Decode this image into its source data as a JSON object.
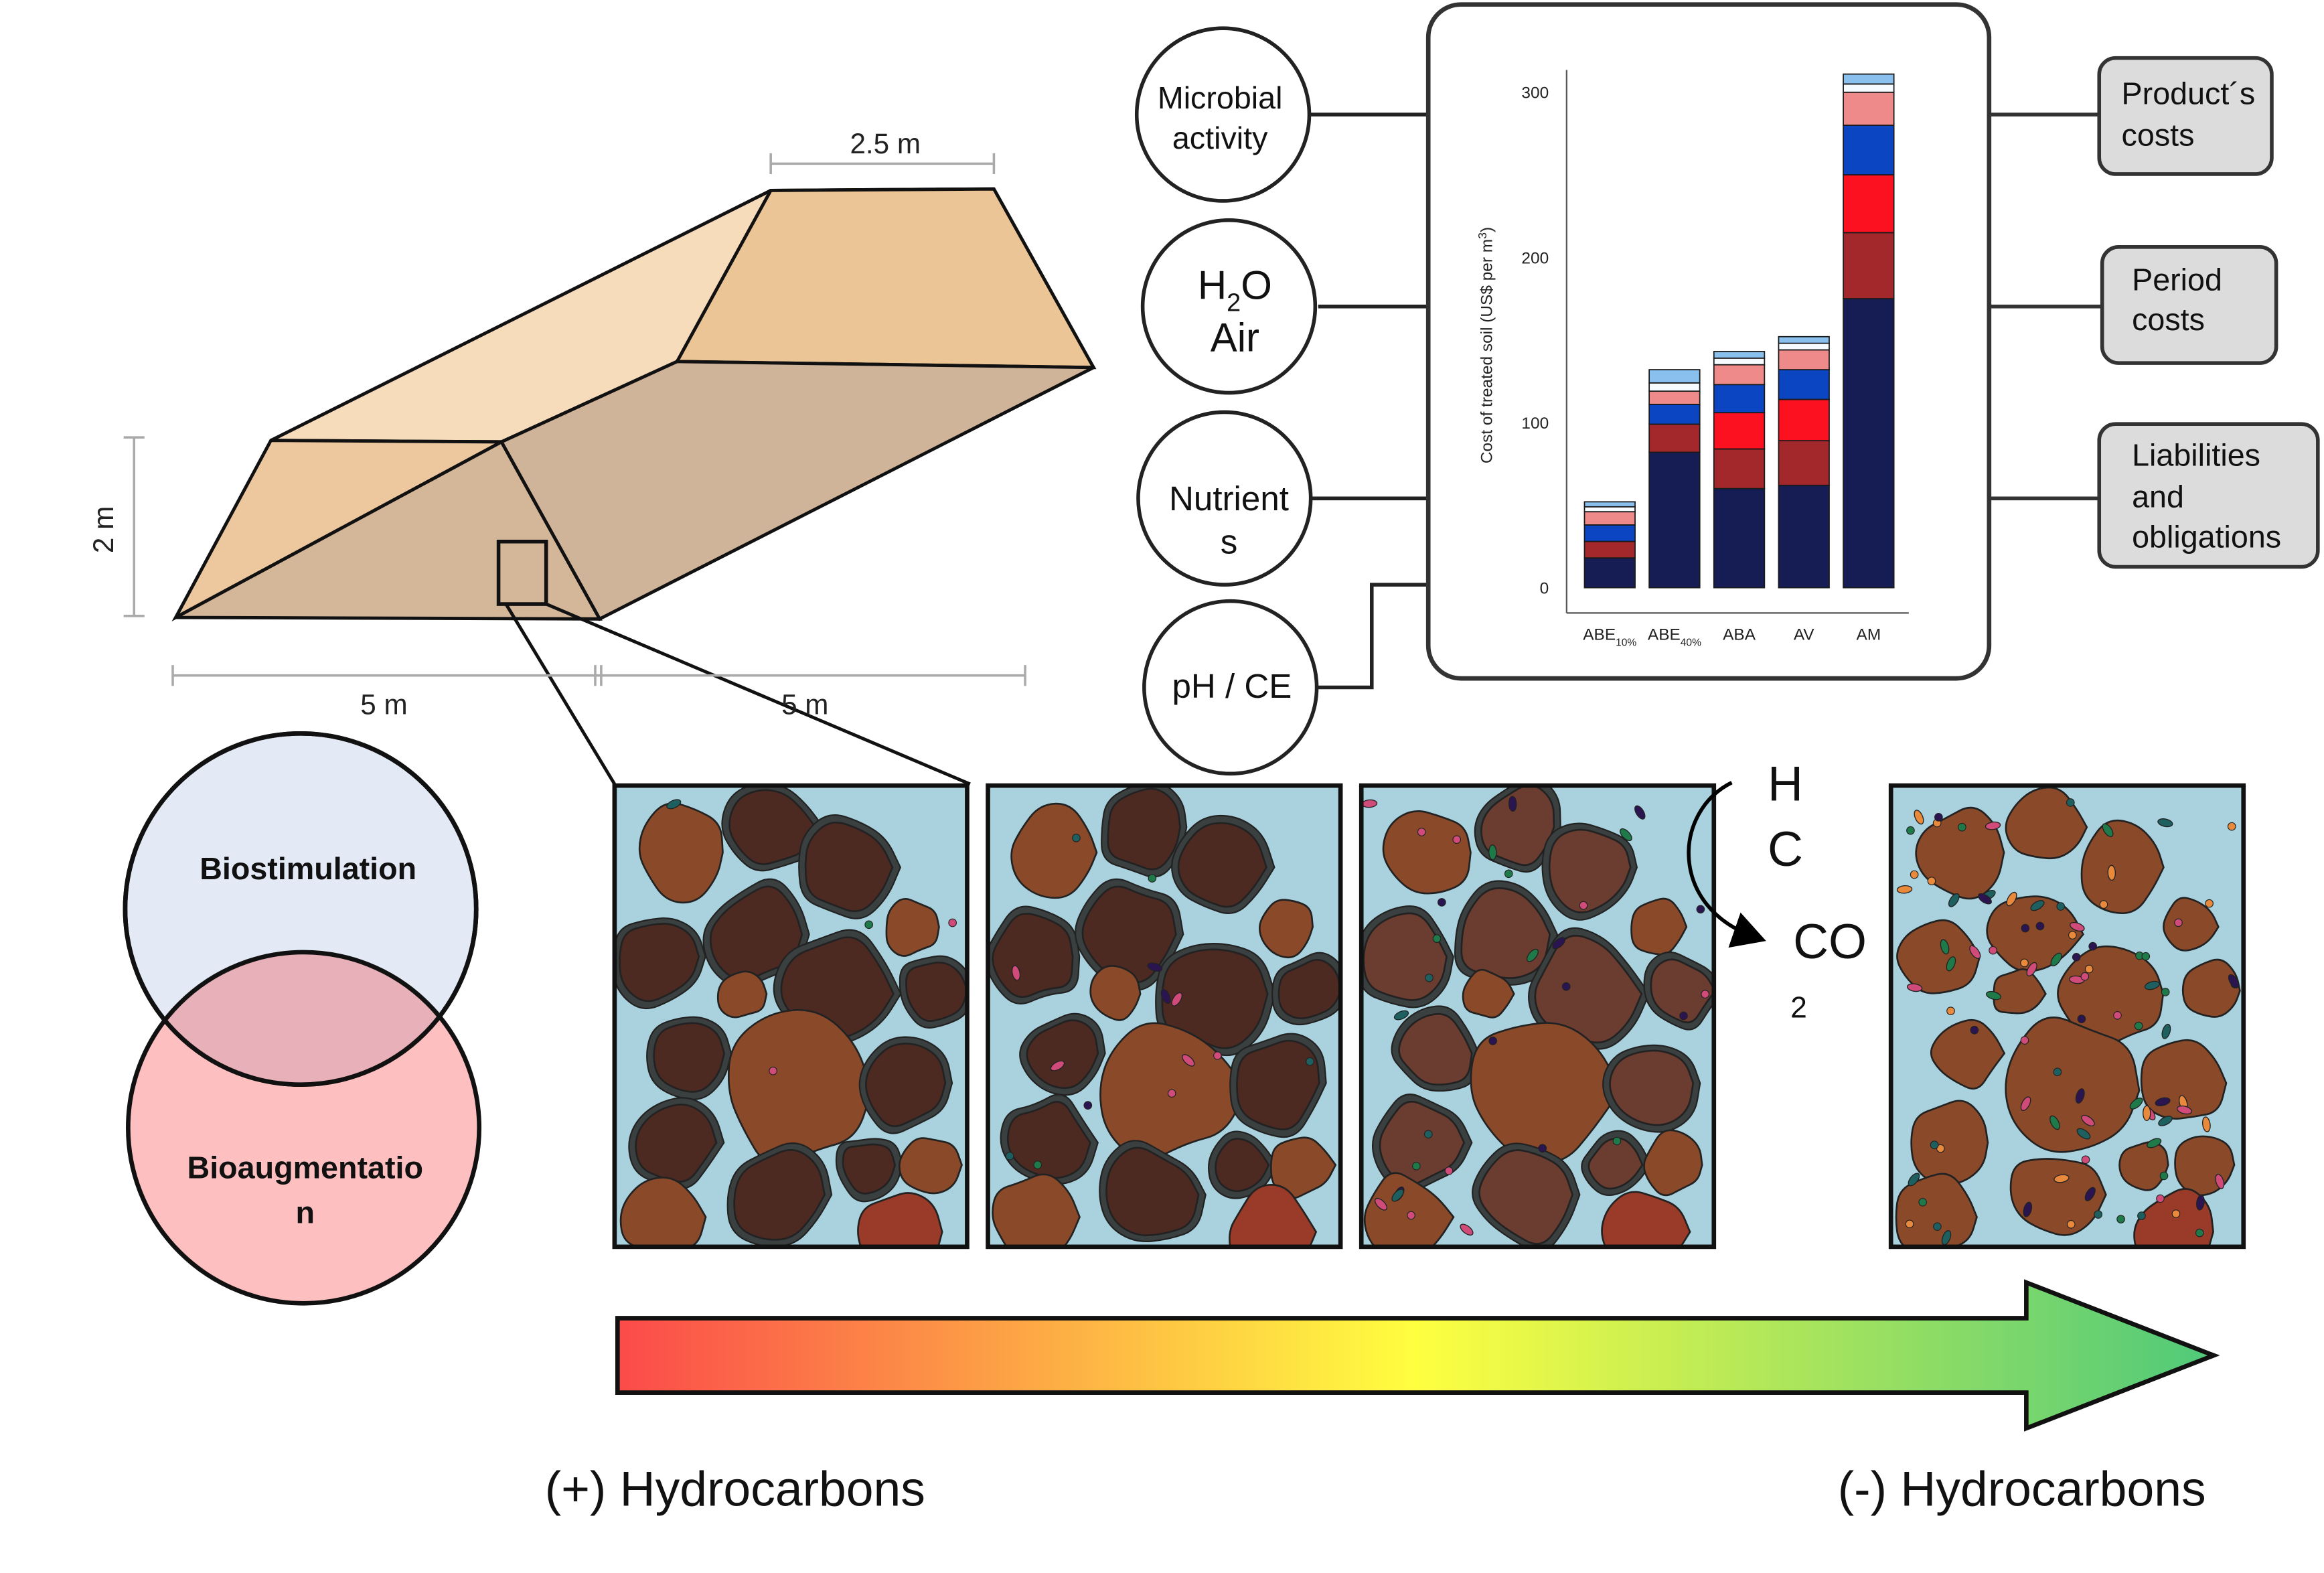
{
  "windrow": {
    "dim_top": "2.5 m",
    "dim_height": "2 m",
    "dim_bottom_left": "5 m",
    "dim_bottom_right": "5 m"
  },
  "factors": {
    "microbial": [
      "Microbial",
      "activity"
    ],
    "h2o": "H",
    "h2o_sub": "2",
    "h2o_o": "O",
    "air": "Air",
    "nutrients": [
      "Nutrient",
      "s"
    ],
    "ph": "pH / CE"
  },
  "costs": {
    "products": [
      "Product´s",
      "costs"
    ],
    "period": [
      "Period",
      "costs"
    ],
    "liabilities": [
      "Liabilities",
      "and",
      "obligations"
    ]
  },
  "venn": {
    "top": "Biostimulation",
    "bottom": [
      "Bioaugmentatio",
      "n"
    ]
  },
  "hc_conversion": {
    "h": "H",
    "c": "C",
    "co": "CO",
    "sub": "2"
  },
  "gradient": {
    "left": "(+) Hydrocarbons",
    "right": "(-) Hydrocarbons",
    "color_start": "#fb4a4a",
    "color_mid": "#ffff40",
    "color_end": "#4fc97a"
  },
  "chart_data": {
    "type": "bar",
    "stacked": true,
    "ylabel": "Cost of treated soil (US$ per m",
    "ylabel_sup": "3",
    "ylabel_end": ")",
    "ylim": [
      0,
      320
    ],
    "yticks": [
      0,
      100,
      200,
      300
    ],
    "categories": [
      {
        "base": "ABE",
        "sub": "10%"
      },
      {
        "base": "ABE",
        "sub": "40%"
      },
      {
        "base": "ABA",
        "sub": ""
      },
      {
        "base": "AV",
        "sub": ""
      },
      {
        "base": "AM",
        "sub": ""
      }
    ],
    "segment_colors": [
      "#161c54",
      "#a3282c",
      "#fb1120",
      "#0c45c2",
      "#ef8a8a",
      "#f6fbff",
      "#8ac0ee"
    ],
    "stacks": [
      [
        18,
        10,
        0,
        10,
        8,
        3,
        3
      ],
      [
        82,
        17,
        0,
        12,
        8,
        5,
        8
      ],
      [
        60,
        24,
        22,
        17,
        12,
        4,
        4
      ],
      [
        62,
        27,
        25,
        18,
        12,
        4,
        4
      ],
      [
        175,
        40,
        35,
        30,
        20,
        5,
        6
      ]
    ]
  }
}
